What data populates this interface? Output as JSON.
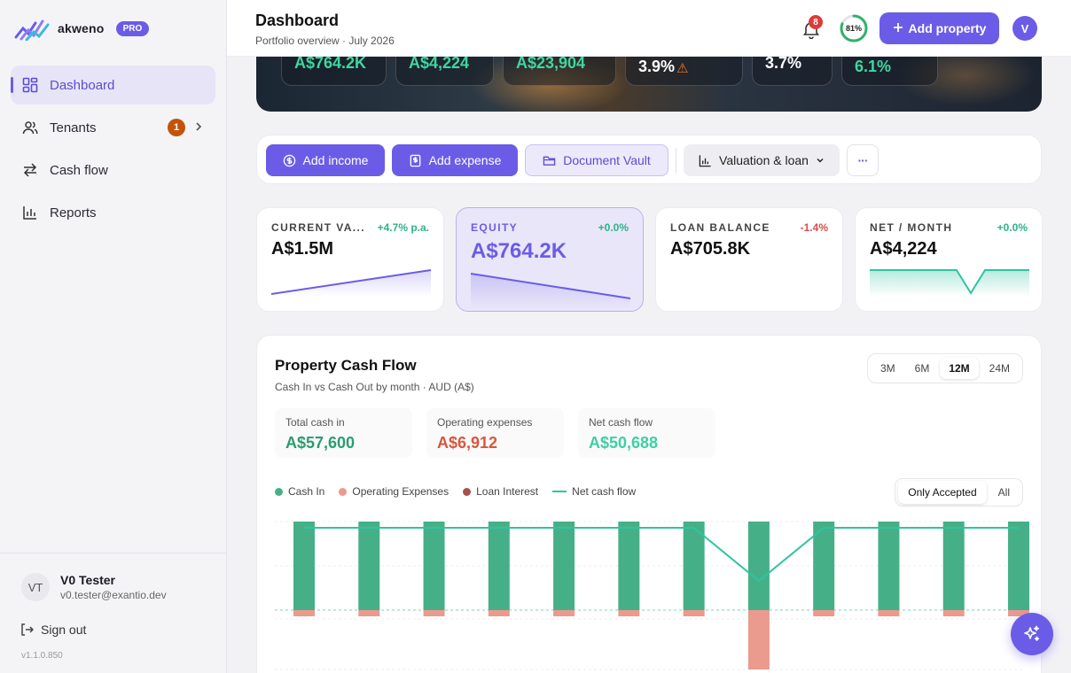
{
  "brand": {
    "name": "akweno",
    "badge": "PRO"
  },
  "nav": [
    {
      "label": "Dashboard",
      "icon": "grid-icon",
      "active": true
    },
    {
      "label": "Tenants",
      "icon": "users-icon",
      "badge": "1"
    },
    {
      "label": "Cash flow",
      "icon": "arrows-swap-icon"
    },
    {
      "label": "Reports",
      "icon": "bar-chart-icon"
    }
  ],
  "user": {
    "initials": "VT",
    "name": "V0 Tester",
    "email": "v0.tester@exantio.dev"
  },
  "signout": "Sign out",
  "version": "v1.1.0.850",
  "header": {
    "title": "Dashboard",
    "subtitle": "Portfolio overview · July 2026",
    "notifications": "8",
    "progress_text": "81%",
    "progress": 0.81,
    "add_property": "Add property",
    "avatar": "V"
  },
  "hero": {
    "pills": [
      "A$764.2K",
      "A$4,224",
      "A$23,904",
      "3.9%",
      "3.7%",
      "6.1%"
    ],
    "warn": "⚠"
  },
  "actions": {
    "add_income": "Add income",
    "add_expense": "Add expense",
    "document_vault": "Document Vault",
    "valuation": "Valuation & loan",
    "more": "···"
  },
  "kpis": [
    {
      "label": "CURRENT VA...",
      "delta": "+4.7% p.a.",
      "value": "A$1.5M",
      "delta_color": "#2fb28a"
    },
    {
      "label": "EQUITY",
      "delta": "+0.0%",
      "value": "A$764.2K",
      "delta_color": "#2fb28a"
    },
    {
      "label": "LOAN BALANCE",
      "delta": "-1.4%",
      "value": "A$705.8K",
      "delta_color": "#d94b4b"
    },
    {
      "label": "NET / MONTH",
      "delta": "+0.0%",
      "value": "A$4,224",
      "delta_color": "#2fb28a"
    }
  ],
  "cashflow": {
    "title": "Property Cash Flow",
    "subtitle": "Cash In vs Cash Out by month · AUD (A$)",
    "ranges": [
      "3M",
      "6M",
      "12M",
      "24M"
    ],
    "active_range": "12M",
    "stats": [
      {
        "label": "Total cash in",
        "value": "A$57,600",
        "color": "#2a9d6f"
      },
      {
        "label": "Operating expenses",
        "value": "A$6,912",
        "color": "#d9563b"
      },
      {
        "label": "Net cash flow",
        "value": "A$50,688",
        "color": "#3fcfa5"
      }
    ],
    "legend": [
      {
        "label": "Cash In",
        "color": "#45b088",
        "kind": "dot"
      },
      {
        "label": "Operating Expenses",
        "color": "#eb9a8e",
        "kind": "dot"
      },
      {
        "label": "Loan Interest",
        "color": "#a8504a",
        "kind": "dot"
      },
      {
        "label": "Net cash flow",
        "color": "#2fc4a0",
        "kind": "line"
      }
    ],
    "toggle": [
      "Only Accepted",
      "All"
    ]
  },
  "chart_data": {
    "type": "bar",
    "months": 12,
    "series": [
      {
        "name": "Cash In",
        "values": [
          4800,
          4800,
          4800,
          4800,
          4800,
          4800,
          4800,
          4800,
          4800,
          4800,
          4800,
          4800
        ]
      },
      {
        "name": "Operating Expenses",
        "values": [
          -336,
          -336,
          -336,
          -336,
          -336,
          -336,
          -336,
          -3216,
          -336,
          -336,
          -336,
          -336
        ]
      },
      {
        "name": "Net cash flow",
        "values": [
          4464,
          4464,
          4464,
          4464,
          4464,
          4464,
          4464,
          1584,
          4464,
          4464,
          4464,
          4464
        ]
      }
    ],
    "ylim": [
      -3300,
      4800
    ],
    "grid": true
  }
}
